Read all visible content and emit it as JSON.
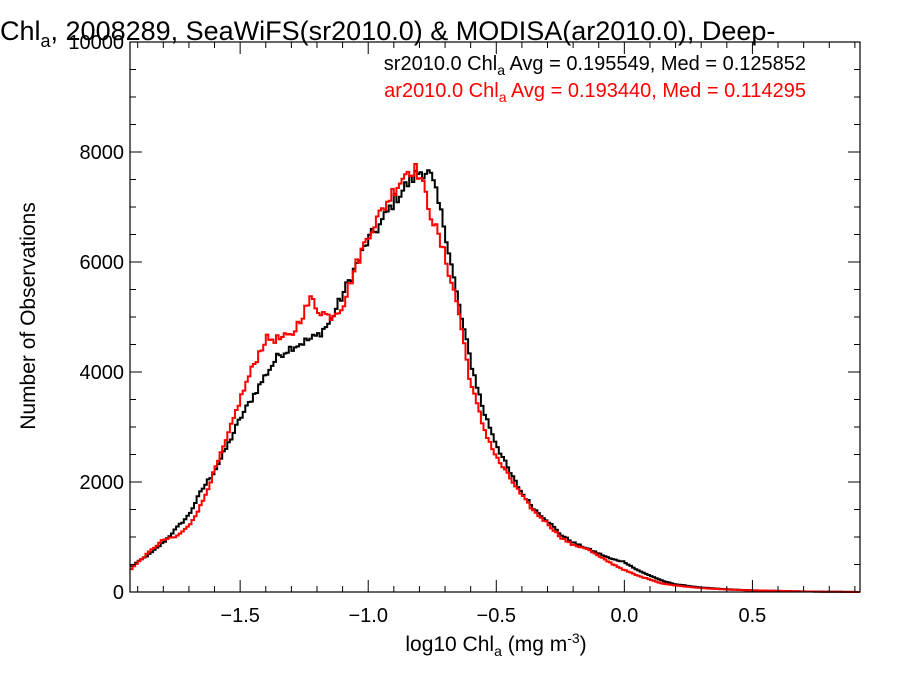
{
  "chart_data": {
    "type": "line",
    "title": {
      "main": "Chl",
      "sub": "a",
      "rest": ", 2008289, SeaWiFS(sr2010.0) & MODISA(ar2010.0), Deep-"
    },
    "xlabel": {
      "main": "log10 Chl",
      "sub": "a",
      "rest": " (mg m",
      "sup": "-3",
      "end": ")"
    },
    "ylabel": "Number of Observations",
    "xlim": [
      -1.93,
      0.92
    ],
    "ylim": [
      0,
      10000
    ],
    "x_ticks": [
      -1.5,
      -1.0,
      -0.5,
      0.0,
      0.5
    ],
    "x_tick_labels": [
      "−1.5",
      "−1.0",
      "−0.5",
      "0.0",
      "0.5"
    ],
    "y_ticks": [
      0,
      2000,
      4000,
      6000,
      8000,
      10000
    ],
    "y_tick_labels": [
      "0",
      "2000",
      "4000",
      "6000",
      "8000",
      "10000"
    ],
    "grid": false,
    "legend_position": "top-right",
    "series": [
      {
        "name": "sr2010.0",
        "color": "#000000",
        "legend": {
          "prefix": "sr2010.0 Chl",
          "sub": "a",
          "suffix": " Avg = 0.195549, Med = 0.125852"
        },
        "x": [
          -1.93,
          -1.85,
          -1.8,
          -1.75,
          -1.7,
          -1.65,
          -1.6,
          -1.55,
          -1.5,
          -1.45,
          -1.4,
          -1.35,
          -1.3,
          -1.25,
          -1.2,
          -1.15,
          -1.1,
          -1.05,
          -1.0,
          -0.95,
          -0.9,
          -0.85,
          -0.8,
          -0.77,
          -0.75,
          -0.7,
          -0.65,
          -0.6,
          -0.55,
          -0.5,
          -0.45,
          -0.4,
          -0.35,
          -0.3,
          -0.25,
          -0.2,
          -0.15,
          -0.1,
          -0.05,
          0.0,
          0.05,
          0.1,
          0.15,
          0.2,
          0.3,
          0.4,
          0.5,
          0.6,
          0.7,
          0.8,
          0.92
        ],
        "y": [
          450,
          700,
          900,
          1150,
          1400,
          1850,
          2200,
          2650,
          3150,
          3550,
          3950,
          4300,
          4450,
          4550,
          4650,
          4900,
          5400,
          5900,
          6400,
          6700,
          7100,
          7400,
          7650,
          7650,
          7500,
          6600,
          5300,
          4200,
          3300,
          2700,
          2200,
          1800,
          1500,
          1300,
          1050,
          900,
          800,
          700,
          600,
          550,
          400,
          300,
          200,
          140,
          80,
          50,
          30,
          20,
          10,
          5,
          0
        ]
      },
      {
        "name": "ar2010.0",
        "color": "#ff0000",
        "legend": {
          "prefix": "ar2010.0 Chl",
          "sub": "a",
          "suffix": " Avg = 0.193440, Med = 0.114295"
        },
        "x": [
          -1.93,
          -1.85,
          -1.8,
          -1.75,
          -1.7,
          -1.65,
          -1.6,
          -1.55,
          -1.5,
          -1.45,
          -1.4,
          -1.35,
          -1.3,
          -1.25,
          -1.22,
          -1.2,
          -1.15,
          -1.1,
          -1.05,
          -1.0,
          -0.95,
          -0.9,
          -0.85,
          -0.82,
          -0.8,
          -0.75,
          -0.7,
          -0.65,
          -0.6,
          -0.55,
          -0.5,
          -0.45,
          -0.4,
          -0.35,
          -0.3,
          -0.25,
          -0.2,
          -0.15,
          -0.1,
          -0.05,
          0.0,
          0.05,
          0.1,
          0.15,
          0.2,
          0.3,
          0.4,
          0.5,
          0.6,
          0.7,
          0.8,
          0.92
        ],
        "y": [
          400,
          750,
          950,
          1000,
          1200,
          1600,
          2200,
          2800,
          3500,
          4100,
          4600,
          4600,
          4650,
          5100,
          5350,
          5150,
          5000,
          5200,
          5900,
          6500,
          6900,
          7300,
          7650,
          7700,
          7600,
          6800,
          6100,
          5200,
          3800,
          3000,
          2450,
          2100,
          1750,
          1450,
          1250,
          1000,
          850,
          800,
          650,
          520,
          400,
          300,
          230,
          150,
          120,
          70,
          45,
          30,
          20,
          10,
          5,
          0
        ]
      }
    ]
  }
}
